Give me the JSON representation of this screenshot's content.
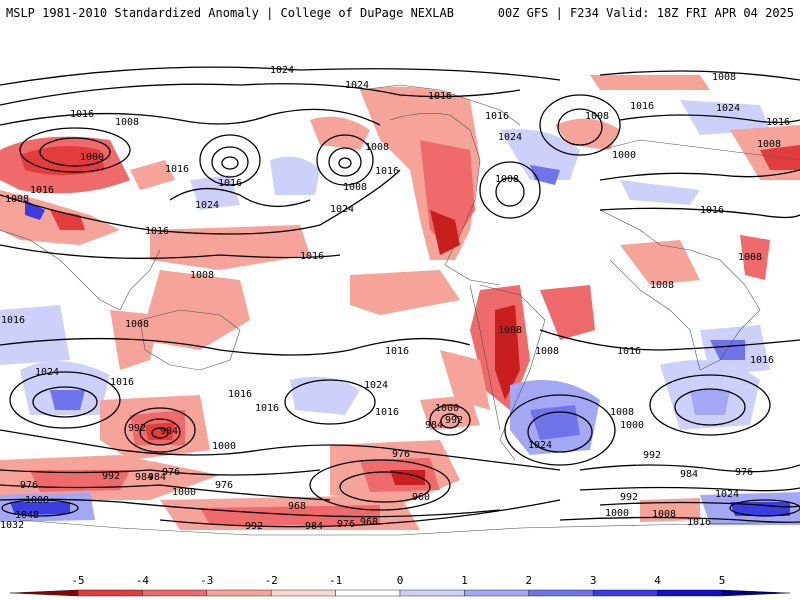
{
  "header": {
    "left_title": "MSLP 1981-2010 Standardized Anomaly | College of DuPage NEXLAB",
    "right_title": "00Z GFS | F234 Valid: 18Z FRI APR 04 2025"
  },
  "colorbar": {
    "ticks": [
      "-5",
      "-4",
      "-3",
      "-2",
      "-1",
      "0",
      "1",
      "2",
      "3",
      "4",
      "5"
    ],
    "colors": [
      "#8b0000",
      "#c81e1e",
      "#e23c3c",
      "#ef6a6a",
      "#f6a49a",
      "#fcd8d0",
      "#ffffff",
      "#cdd0fa",
      "#a4a8f4",
      "#6f74ea",
      "#3a3de0",
      "#1010c8",
      "#00008b"
    ]
  },
  "isobar_labels": [
    {
      "text": "1024"
    },
    {
      "text": "1024"
    },
    {
      "text": "1016"
    },
    {
      "text": "1008"
    },
    {
      "text": "1016"
    },
    {
      "text": "1000"
    },
    {
      "text": "1016"
    },
    {
      "text": "1016"
    },
    {
      "text": "1008"
    },
    {
      "text": "1008"
    },
    {
      "text": "1024"
    },
    {
      "text": "1016"
    },
    {
      "text": "1016"
    },
    {
      "text": "1008"
    },
    {
      "text": "1024"
    },
    {
      "text": "1016"
    },
    {
      "text": "1008"
    },
    {
      "text": "1016"
    },
    {
      "text": "1016"
    },
    {
      "text": "1024"
    },
    {
      "text": "1008"
    },
    {
      "text": "1016"
    },
    {
      "text": "1008"
    },
    {
      "text": "1000"
    },
    {
      "text": "1024"
    },
    {
      "text": "1016"
    },
    {
      "text": "1008"
    },
    {
      "text": "1016"
    },
    {
      "text": "1008"
    },
    {
      "text": "1008"
    },
    {
      "text": "1008"
    },
    {
      "text": "1016"
    },
    {
      "text": "1008"
    },
    {
      "text": "1016"
    },
    {
      "text": "1024"
    },
    {
      "text": "1016"
    },
    {
      "text": "1016"
    },
    {
      "text": "1024"
    },
    {
      "text": "1016"
    },
    {
      "text": "1016"
    },
    {
      "text": "1000"
    },
    {
      "text": "992"
    },
    {
      "text": "984"
    },
    {
      "text": "1008"
    },
    {
      "text": "1008"
    },
    {
      "text": "1024"
    },
    {
      "text": "1016"
    },
    {
      "text": "1016"
    },
    {
      "text": "1008"
    },
    {
      "text": "1000"
    },
    {
      "text": "992"
    },
    {
      "text": "984"
    },
    {
      "text": "1000"
    },
    {
      "text": "984"
    },
    {
      "text": "992"
    },
    {
      "text": "976"
    },
    {
      "text": "984"
    },
    {
      "text": "976"
    },
    {
      "text": "976"
    },
    {
      "text": "992"
    },
    {
      "text": "984"
    },
    {
      "text": "976"
    },
    {
      "text": "1008"
    },
    {
      "text": "1000"
    },
    {
      "text": "976"
    },
    {
      "text": "1048"
    },
    {
      "text": "960"
    },
    {
      "text": "992"
    },
    {
      "text": "1024"
    },
    {
      "text": "968"
    },
    {
      "text": "1032"
    },
    {
      "text": "992"
    },
    {
      "text": "984"
    },
    {
      "text": "976"
    },
    {
      "text": "968"
    },
    {
      "text": "1000"
    },
    {
      "text": "1008"
    },
    {
      "text": "1016"
    }
  ]
}
